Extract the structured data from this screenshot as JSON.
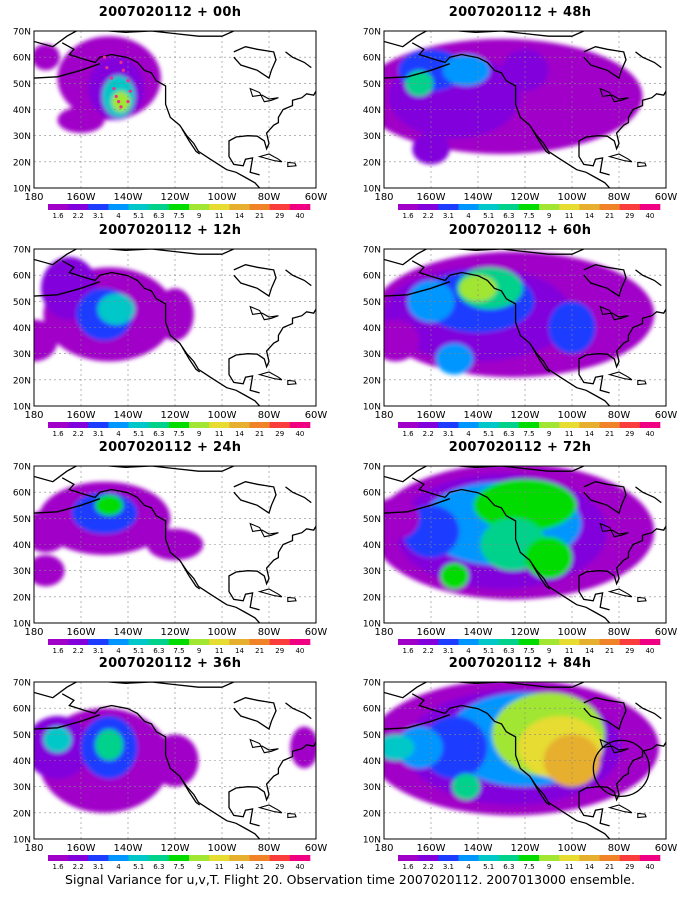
{
  "figure": {
    "caption": "Signal Variance for u,v,T. Flight 20. Observation time 2007020112. 2007013000 ensemble.",
    "panels": [
      {
        "title": "2007020112 + 00h",
        "level": 0
      },
      {
        "title": "2007020112 + 48h",
        "level": 4
      },
      {
        "title": "2007020112 + 12h",
        "level": 1
      },
      {
        "title": "2007020112 + 60h",
        "level": 5
      },
      {
        "title": "2007020112 + 24h",
        "level": 2
      },
      {
        "title": "2007020112 + 72h",
        "level": 6
      },
      {
        "title": "2007020112 + 36h",
        "level": 3
      },
      {
        "title": "2007020112 + 84h",
        "level": 7
      }
    ],
    "lat_labels": [
      "70N",
      "60N",
      "50N",
      "40N",
      "30N",
      "20N",
      "10N"
    ],
    "lon_labels": [
      "180",
      "160W",
      "140W",
      "120W",
      "100W",
      "80W",
      "60W"
    ],
    "colorbar": {
      "labels": [
        "1.6",
        "2.2",
        "3.1",
        "4",
        "5.1",
        "6.3",
        "7.5",
        "9",
        "11",
        "14",
        "21",
        "29",
        "40"
      ],
      "colors": [
        "#a000c8",
        "#8200dc",
        "#1e3cff",
        "#0096ff",
        "#00c8c8",
        "#00d28c",
        "#00dc00",
        "#a0e632",
        "#e6dc32",
        "#e6af2d",
        "#f08228",
        "#fa3c3c",
        "#f00082"
      ]
    },
    "annotations": {
      "flight_track_panel": 0,
      "flight_track_color": "#e8338c",
      "circle_panel": 7
    }
  }
}
